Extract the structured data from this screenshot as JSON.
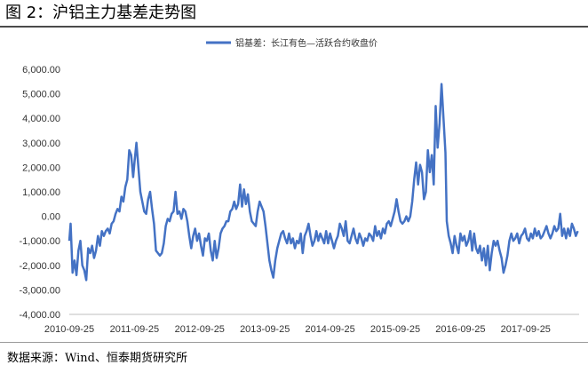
{
  "header": {
    "title": "图 2：沪铝主力基差走势图"
  },
  "footer": {
    "source": "数据来源：Wind、恒泰期货研究所"
  },
  "chart_data": {
    "type": "line",
    "title": "",
    "xlabel": "",
    "ylabel": "",
    "ylim": [
      -4000,
      6000
    ],
    "yticks": [
      6000,
      5000,
      4000,
      3000,
      2000,
      1000,
      0,
      -1000,
      -2000,
      -3000,
      -4000
    ],
    "ytick_labels": [
      "6,000.00",
      "5,000.00",
      "4,000.00",
      "3,000.00",
      "2,000.00",
      "1,000.00",
      "0.00",
      "-1,000.00",
      "-2,000.00",
      "-3,000.00",
      "-4,000.00"
    ],
    "xlim": [
      2010.73,
      2018.55
    ],
    "xticks": [
      2010.73,
      2011.73,
      2012.73,
      2013.73,
      2014.73,
      2015.73,
      2016.73,
      2017.73
    ],
    "xtick_labels": [
      "2010-09-25",
      "2011-09-25",
      "2012-09-25",
      "2013-09-25",
      "2014-09-25",
      "2015-09-25",
      "2016-09-25",
      "2017-09-25"
    ],
    "legend": {
      "position": "top",
      "color": "#4472c4"
    },
    "series": [
      {
        "name": "铝基差：长江有色—活跃合约收盘价",
        "color": "#4472c4",
        "points": [
          [
            2010.73,
            -1000
          ],
          [
            2010.75,
            -300
          ],
          [
            2010.78,
            -2300
          ],
          [
            2010.81,
            -1800
          ],
          [
            2010.84,
            -2400
          ],
          [
            2010.87,
            -1400
          ],
          [
            2010.9,
            -1000
          ],
          [
            2010.93,
            -2000
          ],
          [
            2010.96,
            -2200
          ],
          [
            2010.99,
            -2600
          ],
          [
            2011.02,
            -1300
          ],
          [
            2011.05,
            -1500
          ],
          [
            2011.08,
            -1200
          ],
          [
            2011.11,
            -1700
          ],
          [
            2011.14,
            -1400
          ],
          [
            2011.17,
            -800
          ],
          [
            2011.2,
            -1200
          ],
          [
            2011.23,
            -600
          ],
          [
            2011.26,
            -800
          ],
          [
            2011.29,
            -600
          ],
          [
            2011.32,
            -500
          ],
          [
            2011.35,
            -700
          ],
          [
            2011.38,
            -300
          ],
          [
            2011.41,
            -200
          ],
          [
            2011.44,
            100
          ],
          [
            2011.47,
            300
          ],
          [
            2011.5,
            200
          ],
          [
            2011.53,
            800
          ],
          [
            2011.56,
            600
          ],
          [
            2011.59,
            1200
          ],
          [
            2011.62,
            1500
          ],
          [
            2011.65,
            2700
          ],
          [
            2011.68,
            2500
          ],
          [
            2011.71,
            1600
          ],
          [
            2011.73,
            2200
          ],
          [
            2011.76,
            3000
          ],
          [
            2011.79,
            2000
          ],
          [
            2011.82,
            1000
          ],
          [
            2011.85,
            600
          ],
          [
            2011.88,
            200
          ],
          [
            2011.91,
            100
          ],
          [
            2011.94,
            700
          ],
          [
            2011.97,
            1000
          ],
          [
            2012.0,
            300
          ],
          [
            2012.03,
            -300
          ],
          [
            2012.06,
            -1400
          ],
          [
            2012.09,
            -1500
          ],
          [
            2012.12,
            -1600
          ],
          [
            2012.15,
            -1500
          ],
          [
            2012.18,
            -1100
          ],
          [
            2012.21,
            -400
          ],
          [
            2012.24,
            -100
          ],
          [
            2012.27,
            -200
          ],
          [
            2012.3,
            100
          ],
          [
            2012.33,
            200
          ],
          [
            2012.36,
            1000
          ],
          [
            2012.39,
            100
          ],
          [
            2012.42,
            200
          ],
          [
            2012.45,
            -100
          ],
          [
            2012.48,
            300
          ],
          [
            2012.51,
            200
          ],
          [
            2012.54,
            -200
          ],
          [
            2012.57,
            -800
          ],
          [
            2012.6,
            -1300
          ],
          [
            2012.63,
            -800
          ],
          [
            2012.66,
            -500
          ],
          [
            2012.69,
            -1000
          ],
          [
            2012.72,
            -700
          ],
          [
            2012.75,
            -1200
          ],
          [
            2012.78,
            -1600
          ],
          [
            2012.81,
            -900
          ],
          [
            2012.84,
            -1000
          ],
          [
            2012.87,
            -700
          ],
          [
            2012.9,
            -1400
          ],
          [
            2012.93,
            -1800
          ],
          [
            2012.96,
            -1000
          ],
          [
            2012.99,
            -1700
          ],
          [
            2013.02,
            -1300
          ],
          [
            2013.05,
            -700
          ],
          [
            2013.08,
            -500
          ],
          [
            2013.11,
            -400
          ],
          [
            2013.14,
            -200
          ],
          [
            2013.17,
            -200
          ],
          [
            2013.2,
            200
          ],
          [
            2013.23,
            300
          ],
          [
            2013.26,
            600
          ],
          [
            2013.29,
            300
          ],
          [
            2013.32,
            500
          ],
          [
            2013.35,
            1300
          ],
          [
            2013.38,
            400
          ],
          [
            2013.41,
            1100
          ],
          [
            2013.44,
            500
          ],
          [
            2013.47,
            900
          ],
          [
            2013.5,
            200
          ],
          [
            2013.53,
            -200
          ],
          [
            2013.56,
            -300
          ],
          [
            2013.59,
            -400
          ],
          [
            2013.62,
            200
          ],
          [
            2013.65,
            600
          ],
          [
            2013.68,
            400
          ],
          [
            2013.71,
            200
          ],
          [
            2013.74,
            -400
          ],
          [
            2013.77,
            -1100
          ],
          [
            2013.8,
            -1800
          ],
          [
            2013.83,
            -2200
          ],
          [
            2013.86,
            -2500
          ],
          [
            2013.89,
            -1800
          ],
          [
            2013.92,
            -1300
          ],
          [
            2013.95,
            -1000
          ],
          [
            2013.98,
            -700
          ],
          [
            2014.01,
            -600
          ],
          [
            2014.04,
            -900
          ],
          [
            2014.07,
            -1100
          ],
          [
            2014.1,
            -700
          ],
          [
            2014.13,
            -1100
          ],
          [
            2014.16,
            -900
          ],
          [
            2014.19,
            -1300
          ],
          [
            2014.22,
            -1000
          ],
          [
            2014.25,
            -1100
          ],
          [
            2014.28,
            -700
          ],
          [
            2014.31,
            -1500
          ],
          [
            2014.34,
            -800
          ],
          [
            2014.37,
            -600
          ],
          [
            2014.4,
            -300
          ],
          [
            2014.43,
            -800
          ],
          [
            2014.46,
            -1200
          ],
          [
            2014.49,
            -1000
          ],
          [
            2014.52,
            -600
          ],
          [
            2014.55,
            -1000
          ],
          [
            2014.58,
            -700
          ],
          [
            2014.61,
            -900
          ],
          [
            2014.64,
            -1100
          ],
          [
            2014.67,
            -600
          ],
          [
            2014.7,
            -1100
          ],
          [
            2014.73,
            -700
          ],
          [
            2014.76,
            -1000
          ],
          [
            2014.79,
            -1300
          ],
          [
            2014.82,
            -1000
          ],
          [
            2014.85,
            -800
          ],
          [
            2014.88,
            -300
          ],
          [
            2014.91,
            -500
          ],
          [
            2014.94,
            -800
          ],
          [
            2014.97,
            -200
          ],
          [
            2015.0,
            -1000
          ],
          [
            2015.03,
            -1100
          ],
          [
            2015.06,
            -800
          ],
          [
            2015.09,
            -500
          ],
          [
            2015.12,
            -900
          ],
          [
            2015.15,
            -1100
          ],
          [
            2015.18,
            -700
          ],
          [
            2015.21,
            -900
          ],
          [
            2015.24,
            -1200
          ],
          [
            2015.27,
            -900
          ],
          [
            2015.3,
            -1000
          ],
          [
            2015.33,
            -700
          ],
          [
            2015.36,
            -800
          ],
          [
            2015.39,
            -1000
          ],
          [
            2015.42,
            -400
          ],
          [
            2015.45,
            -800
          ],
          [
            2015.48,
            -600
          ],
          [
            2015.51,
            -900
          ],
          [
            2015.54,
            -500
          ],
          [
            2015.57,
            -700
          ],
          [
            2015.6,
            -300
          ],
          [
            2015.63,
            -200
          ],
          [
            2015.66,
            -400
          ],
          [
            2015.69,
            -100
          ],
          [
            2015.72,
            200
          ],
          [
            2015.75,
            700
          ],
          [
            2015.78,
            200
          ],
          [
            2015.81,
            -200
          ],
          [
            2015.84,
            -300
          ],
          [
            2015.87,
            -200
          ],
          [
            2015.9,
            0
          ],
          [
            2015.93,
            -200
          ],
          [
            2015.96,
            0
          ],
          [
            2015.99,
            600
          ],
          [
            2016.02,
            1500
          ],
          [
            2016.05,
            2200
          ],
          [
            2016.08,
            1300
          ],
          [
            2016.11,
            2100
          ],
          [
            2016.14,
            1800
          ],
          [
            2016.17,
            700
          ],
          [
            2016.2,
            1000
          ],
          [
            2016.23,
            2700
          ],
          [
            2016.26,
            1800
          ],
          [
            2016.29,
            2500
          ],
          [
            2016.32,
            1300
          ],
          [
            2016.35,
            4500
          ],
          [
            2016.38,
            2800
          ],
          [
            2016.41,
            3800
          ],
          [
            2016.44,
            5400
          ],
          [
            2016.47,
            4000
          ],
          [
            2016.5,
            2600
          ],
          [
            2016.52,
            -200
          ],
          [
            2016.55,
            -800
          ],
          [
            2016.58,
            -1100
          ],
          [
            2016.61,
            -1500
          ],
          [
            2016.64,
            -800
          ],
          [
            2016.67,
            -1200
          ],
          [
            2016.7,
            -1500
          ],
          [
            2016.73,
            -700
          ],
          [
            2016.76,
            -1000
          ],
          [
            2016.79,
            -800
          ],
          [
            2016.82,
            -1200
          ],
          [
            2016.85,
            -1000
          ],
          [
            2016.88,
            -600
          ],
          [
            2016.91,
            -1400
          ],
          [
            2016.94,
            -700
          ],
          [
            2016.97,
            -1300
          ],
          [
            2017.0,
            -1500
          ],
          [
            2017.03,
            -1200
          ],
          [
            2017.06,
            -1800
          ],
          [
            2017.09,
            -1300
          ],
          [
            2017.12,
            -2000
          ],
          [
            2017.15,
            -1200
          ],
          [
            2017.18,
            -2200
          ],
          [
            2017.21,
            -1500
          ],
          [
            2017.24,
            -1000
          ],
          [
            2017.27,
            -1200
          ],
          [
            2017.3,
            -1000
          ],
          [
            2017.33,
            -1400
          ],
          [
            2017.36,
            -1700
          ],
          [
            2017.39,
            -2300
          ],
          [
            2017.42,
            -2000
          ],
          [
            2017.45,
            -1600
          ],
          [
            2017.48,
            -1000
          ],
          [
            2017.51,
            -700
          ],
          [
            2017.54,
            -1000
          ],
          [
            2017.57,
            -900
          ],
          [
            2017.6,
            -700
          ],
          [
            2017.63,
            -1100
          ],
          [
            2017.66,
            -800
          ],
          [
            2017.69,
            -700
          ],
          [
            2017.72,
            -500
          ],
          [
            2017.75,
            -900
          ],
          [
            2017.78,
            -1000
          ],
          [
            2017.81,
            -700
          ],
          [
            2017.84,
            -900
          ],
          [
            2017.87,
            -500
          ],
          [
            2017.9,
            -800
          ],
          [
            2017.93,
            -600
          ],
          [
            2017.96,
            -900
          ],
          [
            2017.99,
            -800
          ],
          [
            2018.02,
            -600
          ],
          [
            2018.05,
            -400
          ],
          [
            2018.08,
            -700
          ],
          [
            2018.11,
            -900
          ],
          [
            2018.14,
            -700
          ],
          [
            2018.17,
            -400
          ],
          [
            2018.2,
            -600
          ],
          [
            2018.23,
            -500
          ],
          [
            2018.26,
            100
          ],
          [
            2018.29,
            -800
          ],
          [
            2018.32,
            -500
          ],
          [
            2018.35,
            -900
          ],
          [
            2018.38,
            -500
          ],
          [
            2018.41,
            -800
          ],
          [
            2018.44,
            -300
          ],
          [
            2018.47,
            -500
          ],
          [
            2018.5,
            -800
          ],
          [
            2018.53,
            -600
          ]
        ]
      }
    ]
  }
}
